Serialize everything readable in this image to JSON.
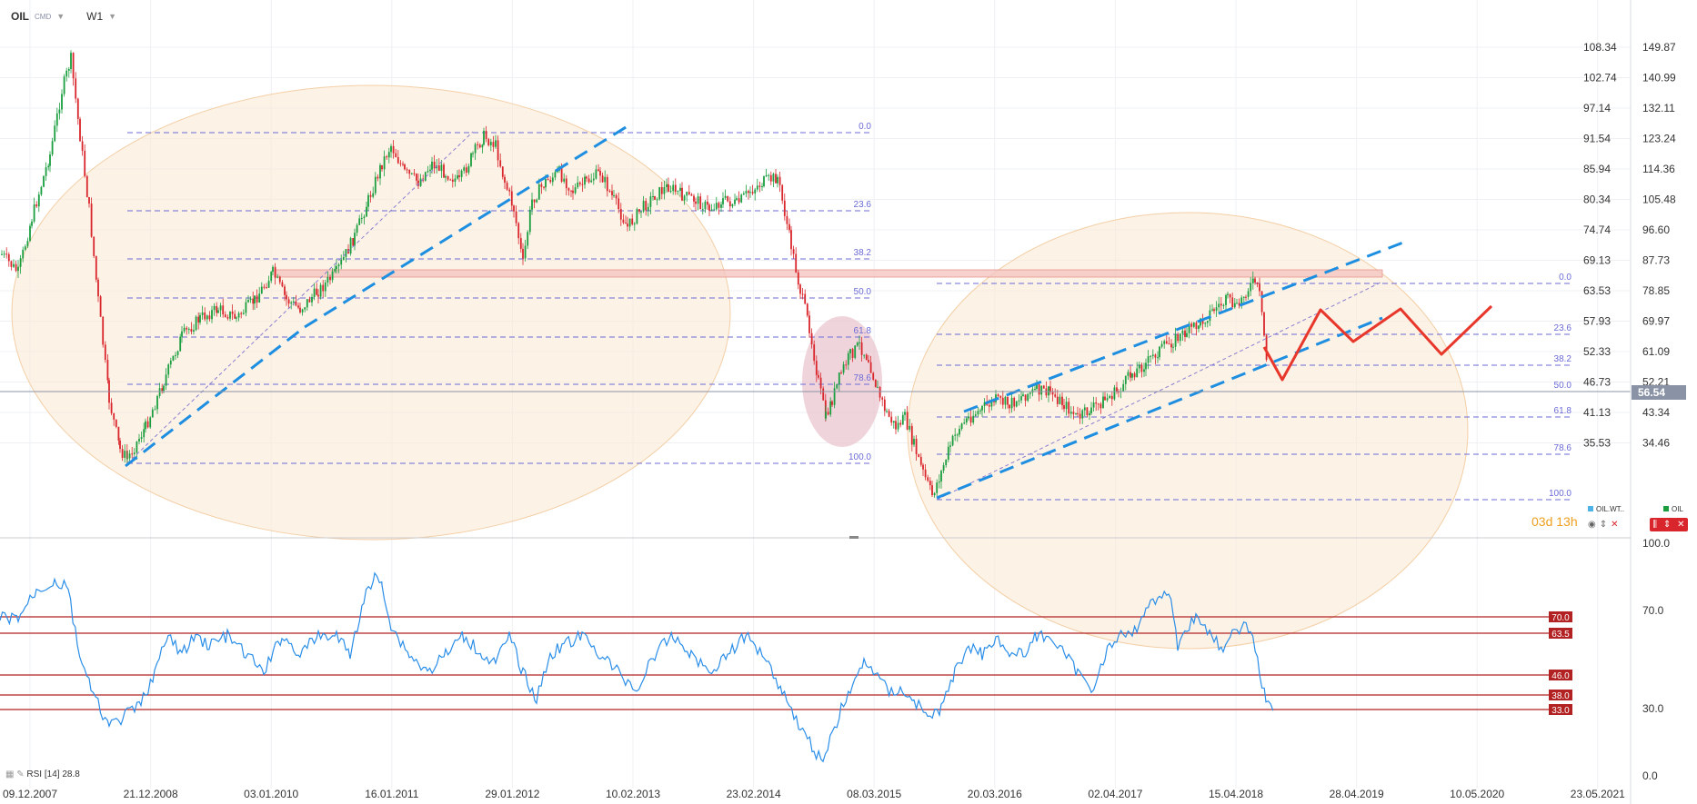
{
  "header": {
    "symbol": "OIL",
    "source": "CMD",
    "timeframe": "W1"
  },
  "price_axis_inner": [
    "108.34",
    "102.74",
    "97.14",
    "91.54",
    "85.94",
    "80.34",
    "74.74",
    "69.13",
    "63.53",
    "57.93",
    "52.33",
    "46.73",
    "41.13",
    "35.53"
  ],
  "price_axis_outer": [
    "149.87",
    "140.99",
    "132.11",
    "123.24",
    "114.36",
    "105.48",
    "96.60",
    "87.73",
    "78.85",
    "69.97",
    "61.09",
    "52.21",
    "43.34",
    "34.46"
  ],
  "current_price": "56.54",
  "timer": {
    "days": "03",
    "d": "d",
    "hours": "13",
    "h": "h"
  },
  "legend": {
    "series1": "OIL.WT..",
    "series2": "OIL"
  },
  "dates": [
    "09.12.2007",
    "21.12.2008",
    "03.01.2010",
    "16.01.2011",
    "29.01.2012",
    "10.02.2013",
    "23.02.2014",
    "08.03.2015",
    "20.03.2016",
    "02.04.2017",
    "15.04.2018",
    "28.04.2019",
    "10.05.2020",
    "23.05.2021"
  ],
  "fib_left": [
    "0.0",
    "23.6",
    "38.2",
    "50.0",
    "61.8",
    "78.6",
    "100.0"
  ],
  "fib_right": [
    "0.0",
    "23.6",
    "38.2",
    "50.0",
    "61.8",
    "78.6",
    "100.0"
  ],
  "rsi": {
    "label": "RSI [14]",
    "value": "28.8",
    "axis": [
      "100.0",
      "70.0",
      "30.0",
      "0.0"
    ],
    "levels": [
      "70.0",
      "63.5",
      "46.0",
      "38.0",
      "33.0"
    ]
  },
  "colors": {
    "candle_up": "#1a9e3f",
    "candle_down": "#d9262c",
    "trend": "#1e8ee0",
    "projection": "#e8382c",
    "rsi_line": "#2a8ee8",
    "level": "#b22222",
    "ellipse": "#f8dfc2",
    "ellipse_pink": "#e6b8c4",
    "fib": "#6b6bd6"
  },
  "chart_data": {
    "type": "candlestick",
    "x": [
      "09.12.2007",
      "21.12.2008",
      "03.01.2010",
      "16.01.2011",
      "29.01.2012",
      "10.02.2013",
      "23.02.2014",
      "08.03.2015",
      "20.03.2016",
      "02.04.2017",
      "15.04.2018",
      "28.04.2019"
    ],
    "close": [
      92.0,
      40.0,
      80.0,
      90.0,
      100.0,
      93.0,
      95.0,
      48.0,
      35.0,
      48.0,
      66.0,
      56.5
    ],
    "ylim": [
      32,
      112
    ],
    "rsi_values": [
      63,
      25,
      55,
      68,
      50,
      52,
      55,
      18,
      40,
      55,
      62,
      28.8
    ],
    "rsi_ylim": [
      0,
      100
    ]
  }
}
